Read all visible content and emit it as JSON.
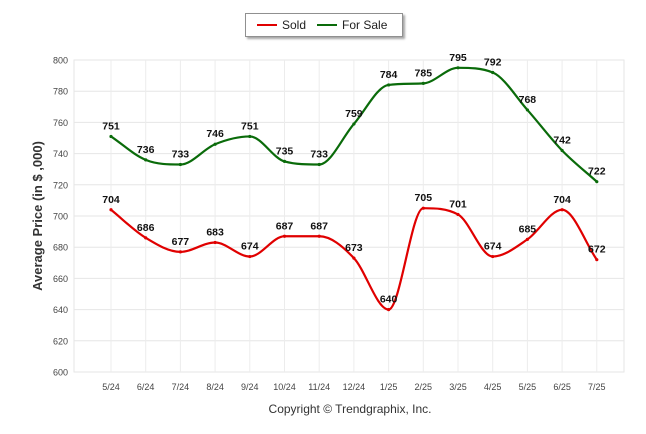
{
  "chart_data": {
    "type": "line",
    "title": "",
    "xlabel": "",
    "ylabel": "Average Price (in $ ,000)",
    "categories": [
      "5/24",
      "6/24",
      "7/24",
      "8/24",
      "9/24",
      "10/24",
      "11/24",
      "12/24",
      "1/25",
      "2/25",
      "3/25",
      "4/25",
      "5/25",
      "6/25",
      "7/25"
    ],
    "ylim": [
      600,
      800
    ],
    "yticks": [
      600,
      620,
      640,
      660,
      680,
      700,
      720,
      740,
      760,
      780,
      800
    ],
    "grid": true,
    "legend_position": "top-center",
    "series": [
      {
        "name": "Sold",
        "color": "#e00000",
        "values": [
          704,
          686,
          677,
          683,
          674,
          687,
          687,
          673,
          640,
          705,
          701,
          674,
          685,
          704,
          672
        ]
      },
      {
        "name": "For Sale",
        "color": "#0a6b0a",
        "values": [
          751,
          736,
          733,
          746,
          751,
          735,
          733,
          759,
          784,
          785,
          795,
          792,
          768,
          742,
          722
        ]
      }
    ]
  },
  "legend": {
    "sold_label": "Sold",
    "for_sale_label": "For Sale"
  },
  "footer": {
    "copyright": "Copyright © Trendgraphix, Inc."
  }
}
